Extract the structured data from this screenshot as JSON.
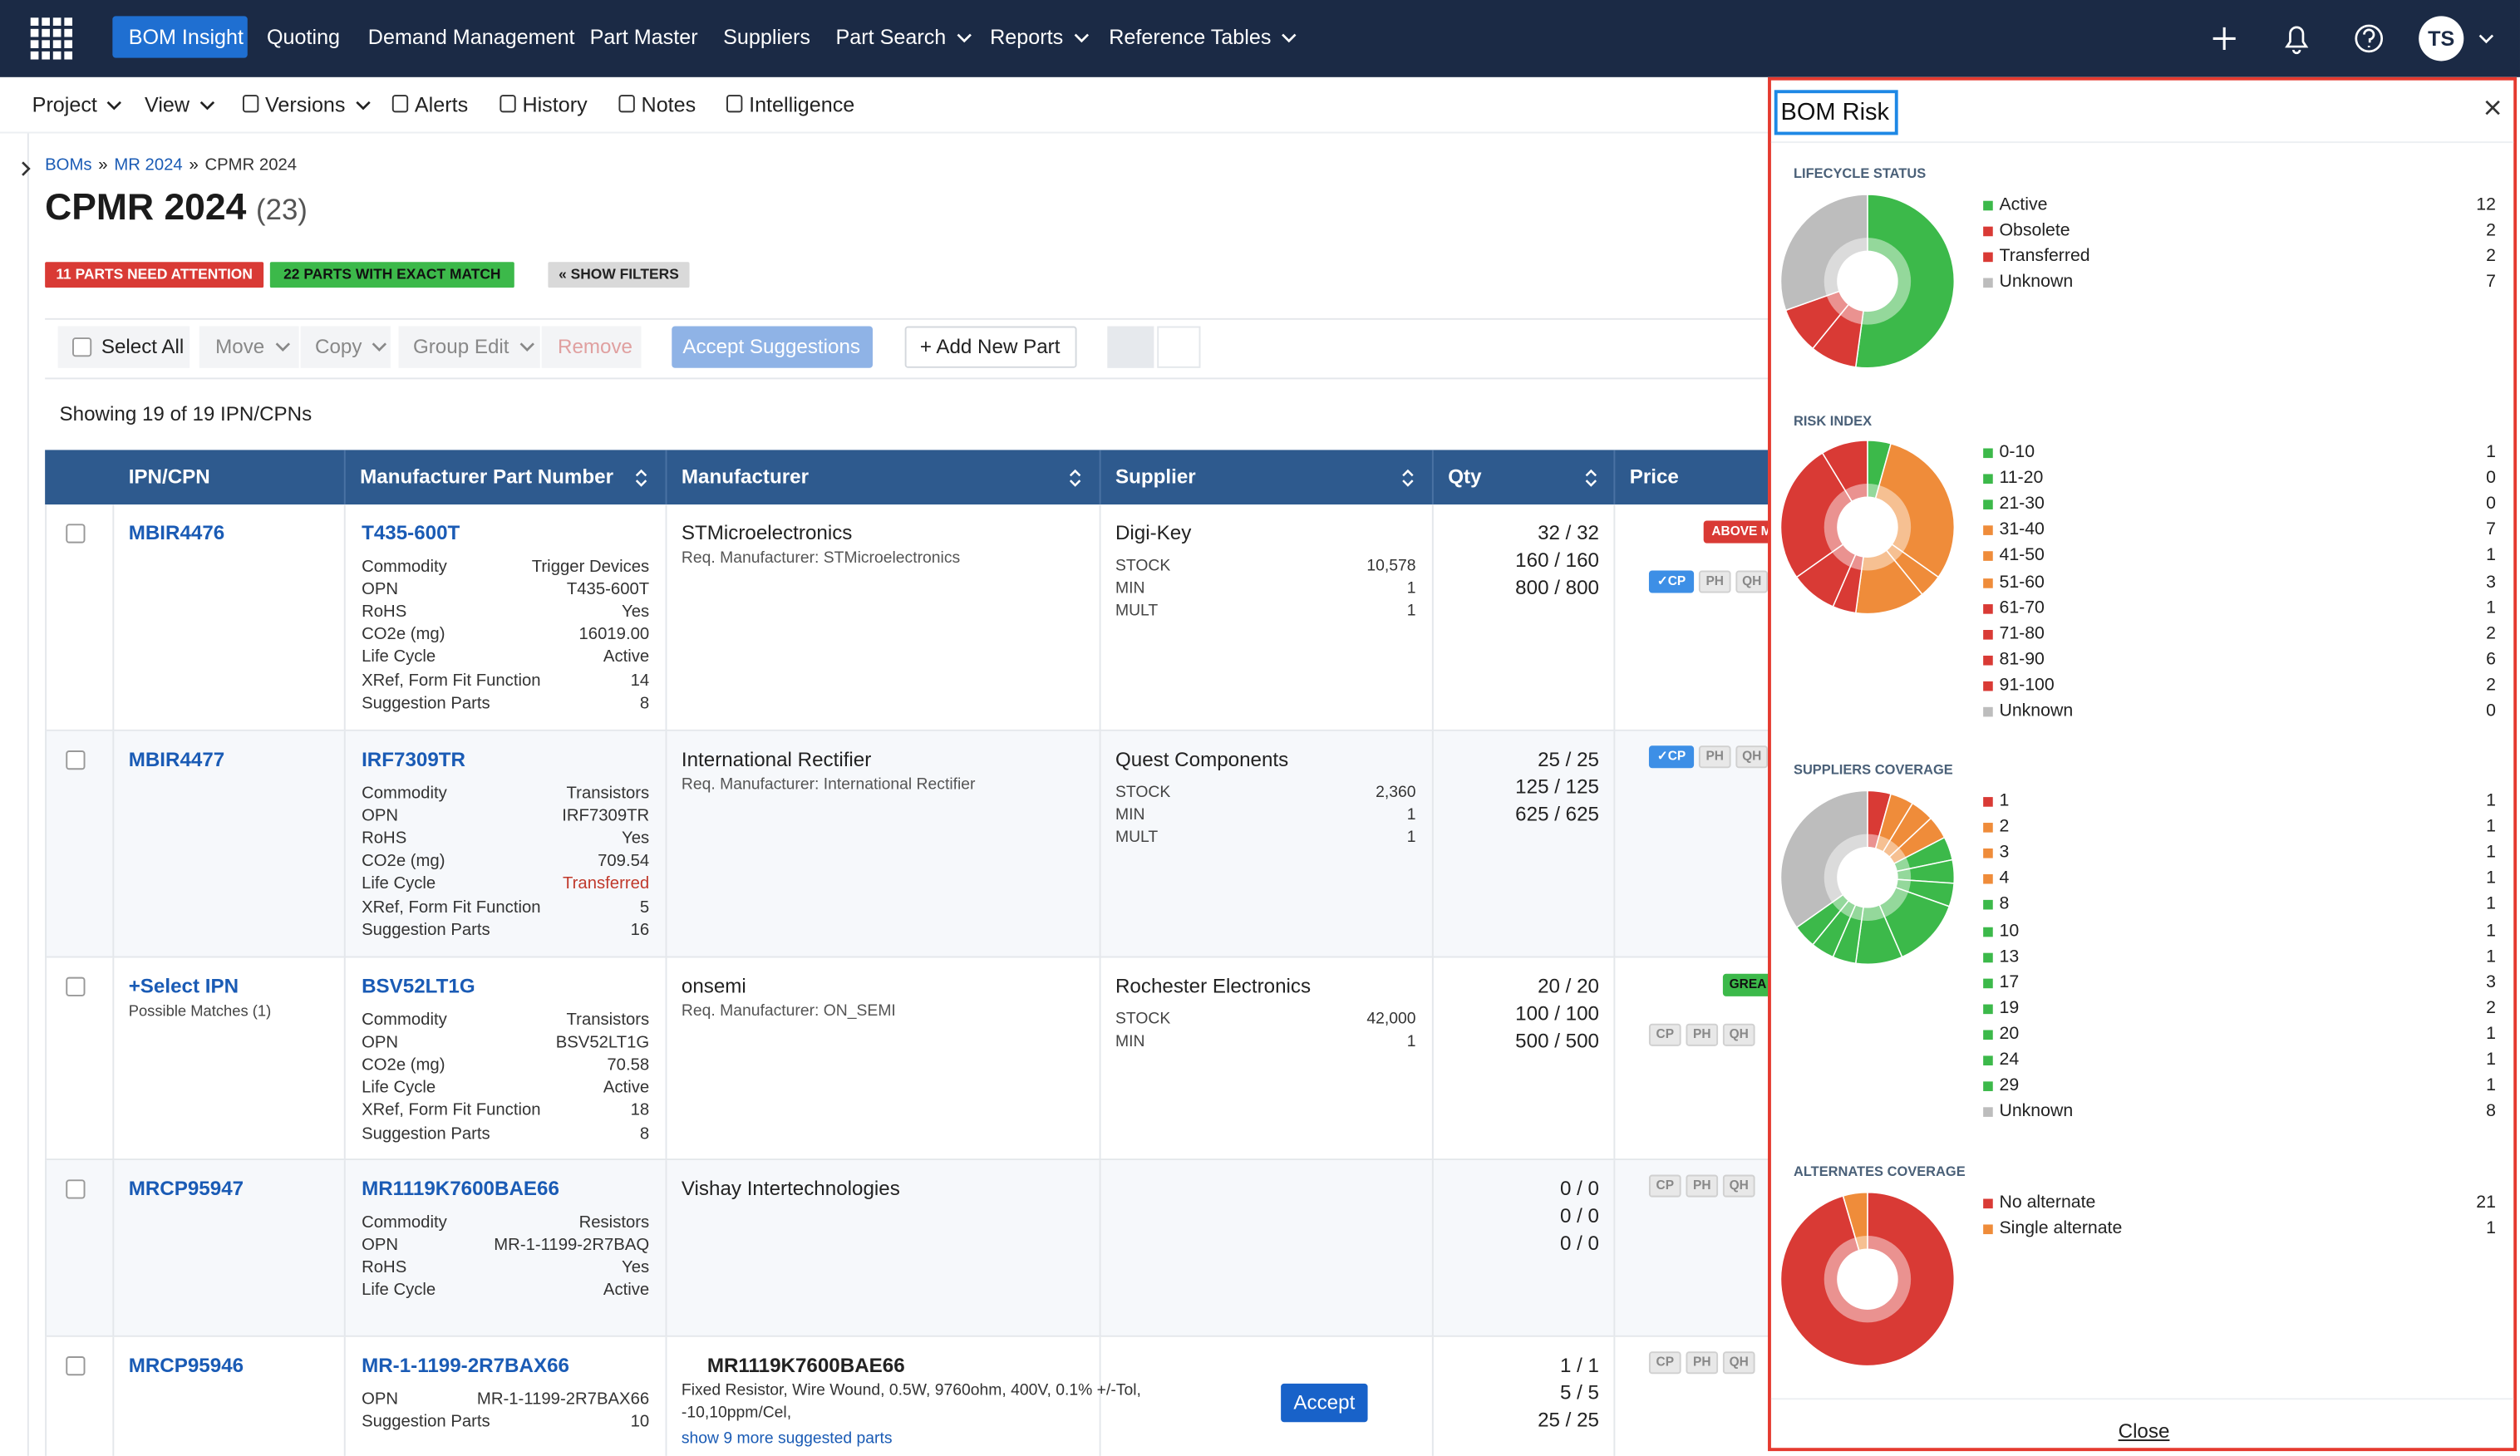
{
  "nav": {
    "items": [
      {
        "label": "BOM Insight",
        "active": true
      },
      {
        "label": "Quoting"
      },
      {
        "label": "Demand Management"
      },
      {
        "label": "Part Master"
      },
      {
        "label": "Suppliers"
      },
      {
        "label": "Part Search",
        "caret": true
      },
      {
        "label": "Reports",
        "caret": true
      },
      {
        "label": "Reference Tables",
        "caret": true
      }
    ],
    "avatar": "TS"
  },
  "toolbar": [
    {
      "label": "Project",
      "caret": true
    },
    {
      "label": "View",
      "caret": true
    },
    {
      "label": "Versions",
      "caret": true
    },
    {
      "label": "Alerts"
    },
    {
      "label": "History"
    },
    {
      "label": "Notes"
    },
    {
      "label": "Intelligence"
    }
  ],
  "breadcrumb": {
    "items": [
      "BOMs",
      "MR 2024",
      "CPMR 2024"
    ],
    "separator": "»"
  },
  "header": {
    "title": "CPMR 2024",
    "count": "(23)"
  },
  "badges": [
    "11 PARTS NEED ATTENTION",
    "22 PARTS WITH EXACT MATCH",
    "« SHOW FILTERS"
  ],
  "actions": [
    "Select All",
    "Move",
    "Copy",
    "Group Edit",
    "Remove",
    "Accept Suggestions",
    "+ Add New Part"
  ],
  "showing": "Showing 19 of 19 IPN/CPNs",
  "columns": [
    "IPN/CPN",
    "Manufacturer Part Number",
    "Manufacturer",
    "Supplier",
    "Qty",
    "Price"
  ],
  "rows": [
    {
      "ipn": "MBIR4476",
      "mpn": "T435-600T",
      "attrs": [
        {
          "k": "Commodity",
          "v": "Trigger Devices"
        },
        {
          "k": "OPN",
          "v": "T435-600T"
        },
        {
          "k": "RoHS",
          "v": "Yes"
        },
        {
          "k": "CO2e (mg)",
          "v": "16019.00"
        },
        {
          "k": "Life Cycle",
          "v": "Active"
        },
        {
          "k": "XRef, Form Fit Function",
          "v": "14"
        },
        {
          "k": "Suggestion Parts",
          "v": "8"
        }
      ],
      "mfr": "STMicroelectronics",
      "req": "Req. Manufacturer: STMicroelectronics",
      "supplier": "Digi-Key",
      "sattrs": [
        {
          "k": "STOCK",
          "v": "10,578"
        },
        {
          "k": "MIN",
          "v": "1"
        },
        {
          "k": "MULT",
          "v": "1"
        }
      ],
      "qty": [
        "32 / 32",
        "160 / 160",
        "800 / 800"
      ],
      "badge": {
        "text": "ABOVE M",
        "color": "#d93a35"
      },
      "tags": [
        {
          "label": "✓CP",
          "active": true
        },
        {
          "label": "PH"
        },
        {
          "label": "QH"
        }
      ]
    },
    {
      "ipn": "MBIR4477",
      "mpn": "IRF7309TR",
      "shade": true,
      "attrs": [
        {
          "k": "Commodity",
          "v": "Transistors"
        },
        {
          "k": "OPN",
          "v": "IRF7309TR"
        },
        {
          "k": "RoHS",
          "v": "Yes"
        },
        {
          "k": "CO2e (mg)",
          "v": "709.54"
        },
        {
          "k": "Life Cycle",
          "v": "Transferred",
          "color": "#c0392b"
        },
        {
          "k": "XRef, Form Fit Function",
          "v": "5"
        },
        {
          "k": "Suggestion Parts",
          "v": "16"
        }
      ],
      "mfr": "International Rectifier",
      "req": "Req. Manufacturer: International Rectifier",
      "supplier": "Quest Components",
      "sattrs": [
        {
          "k": "STOCK",
          "v": "2,360"
        },
        {
          "k": "MIN",
          "v": "1"
        },
        {
          "k": "MULT",
          "v": "1"
        }
      ],
      "qty": [
        "25 / 25",
        "125 / 125",
        "625 / 625"
      ],
      "tags": [
        {
          "label": "✓CP",
          "active": true
        },
        {
          "label": "PH"
        },
        {
          "label": "QH"
        }
      ],
      "tags_top": true
    },
    {
      "ipn": "+Select IPN",
      "ipn_sub": "Possible Matches (1)",
      "mpn": "BSV52LT1G",
      "attrs": [
        {
          "k": "Commodity",
          "v": "Transistors"
        },
        {
          "k": "OPN",
          "v": "BSV52LT1G"
        },
        {
          "k": "CO2e (mg)",
          "v": "70.58"
        },
        {
          "k": "Life Cycle",
          "v": "Active"
        },
        {
          "k": "XRef, Form Fit Function",
          "v": "18"
        },
        {
          "k": "Suggestion Parts",
          "v": "8"
        }
      ],
      "mfr": "onsemi",
      "req": "Req. Manufacturer: ON_SEMI",
      "supplier": "Rochester Electronics",
      "sattrs": [
        {
          "k": "STOCK",
          "v": "42,000"
        },
        {
          "k": "MIN",
          "v": "1"
        }
      ],
      "qty": [
        "20 / 20",
        "100 / 100",
        "500 / 500"
      ],
      "badge": {
        "text": "GREA",
        "color": "#3cb94a"
      },
      "tags": [
        {
          "label": "CP"
        },
        {
          "label": "PH"
        },
        {
          "label": "QH"
        }
      ]
    },
    {
      "ipn": "MRCP95947",
      "mpn": "MR1119K7600BAE66",
      "shade": true,
      "attrs": [
        {
          "k": "Commodity",
          "v": "Resistors"
        },
        {
          "k": "OPN",
          "v": "MR-1-1199-2R7BAQ"
        },
        {
          "k": "RoHS",
          "v": "Yes"
        },
        {
          "k": "Life Cycle",
          "v": "Active"
        }
      ],
      "mfr": "Vishay Intertechnologies",
      "qty": [
        "0 / 0",
        "0 / 0",
        "0 / 0"
      ],
      "tags": [
        {
          "label": "CP"
        },
        {
          "label": "PH"
        },
        {
          "label": "QH"
        }
      ],
      "tags_top": true
    },
    {
      "ipn": "MRCP95946",
      "mpn": "MR-1-1199-2R7BAX66",
      "attrs": [
        {
          "k": "OPN",
          "v": "MR-1-1199-2R7BAX66"
        },
        {
          "k": "Suggestion Parts",
          "v": "10"
        }
      ],
      "suggestion": {
        "part": "MR1119K7600BAE66",
        "desc": [
          "Fixed Resistor, Wire Wound, 0.5W, 9760ohm, 400V, 0.1% +/-Tol,",
          "-10,10ppm/Cel,"
        ],
        "link": "show 9 more suggested parts",
        "accept": "Accept"
      },
      "qty": [
        "1 / 1",
        "5 / 5",
        "25 / 25"
      ],
      "tags": [
        {
          "label": "CP"
        },
        {
          "label": "PH"
        },
        {
          "label": "QH"
        }
      ],
      "tags_top": true
    }
  ],
  "panel": {
    "title": "BOM Risk",
    "close": "Close",
    "sections": [
      {
        "title": "LIFECYCLE STATUS",
        "items": [
          {
            "name": "Active",
            "value": 12,
            "color": "#3cb94a"
          },
          {
            "name": "Obsolete",
            "value": 2,
            "color": "#d93a35"
          },
          {
            "name": "Transferred",
            "value": 2,
            "color": "#d93a35"
          },
          {
            "name": "Unknown",
            "value": 7,
            "color": "#bdbdbd"
          }
        ]
      },
      {
        "title": "RISK INDEX",
        "items": [
          {
            "name": "0-10",
            "value": 1,
            "color": "#3cb94a"
          },
          {
            "name": "11-20",
            "value": 0,
            "color": "#3cb94a"
          },
          {
            "name": "21-30",
            "value": 0,
            "color": "#3cb94a"
          },
          {
            "name": "31-40",
            "value": 7,
            "color": "#ef8c3a"
          },
          {
            "name": "41-50",
            "value": 1,
            "color": "#ef8c3a"
          },
          {
            "name": "51-60",
            "value": 3,
            "color": "#ef8c3a"
          },
          {
            "name": "61-70",
            "value": 1,
            "color": "#d93a35"
          },
          {
            "name": "71-80",
            "value": 2,
            "color": "#d93a35"
          },
          {
            "name": "81-90",
            "value": 6,
            "color": "#d93a35"
          },
          {
            "name": "91-100",
            "value": 2,
            "color": "#d93a35"
          },
          {
            "name": "Unknown",
            "value": 0,
            "color": "#bdbdbd"
          }
        ]
      },
      {
        "title": "SUPPLIERS COVERAGE",
        "items": [
          {
            "name": "1",
            "value": 1,
            "color": "#d93a35"
          },
          {
            "name": "2",
            "value": 1,
            "color": "#ef8c3a"
          },
          {
            "name": "3",
            "value": 1,
            "color": "#ef8c3a"
          },
          {
            "name": "4",
            "value": 1,
            "color": "#ef8c3a"
          },
          {
            "name": "8",
            "value": 1,
            "color": "#3cb94a"
          },
          {
            "name": "10",
            "value": 1,
            "color": "#3cb94a"
          },
          {
            "name": "13",
            "value": 1,
            "color": "#3cb94a"
          },
          {
            "name": "17",
            "value": 3,
            "color": "#3cb94a"
          },
          {
            "name": "19",
            "value": 2,
            "color": "#3cb94a"
          },
          {
            "name": "20",
            "value": 1,
            "color": "#3cb94a"
          },
          {
            "name": "24",
            "value": 1,
            "color": "#3cb94a"
          },
          {
            "name": "29",
            "value": 1,
            "color": "#3cb94a"
          },
          {
            "name": "Unknown",
            "value": 8,
            "color": "#bdbdbd"
          }
        ]
      },
      {
        "title": "ALTERNATES COVERAGE",
        "items": [
          {
            "name": "No alternate",
            "value": 21,
            "color": "#d93a35"
          },
          {
            "name": "Single alternate",
            "value": 1,
            "color": "#ef8c3a"
          }
        ]
      }
    ]
  }
}
